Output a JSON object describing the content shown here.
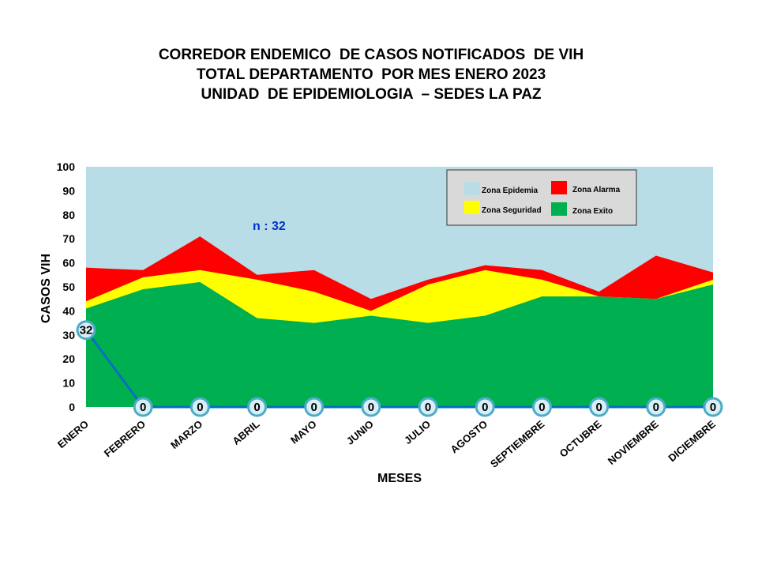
{
  "title_lines": [
    "CORREDOR ENDEMICO  DE CASOS NOTIFICADOS  DE VIH",
    "TOTAL DEPARTAMENTO  POR MES ENERO 2023",
    "UNIDAD  DE EPIDEMIOLOGIA  – SEDES LA PAZ"
  ],
  "annotation": "n : 32",
  "colors": {
    "epidemia": "#b8dde7",
    "alarma": "#ff0000",
    "seguridad": "#ffff00",
    "exito": "#00b050",
    "cases_line": "#0070c0",
    "marker_fill": "#d9eef5",
    "marker_stroke": "#4bacc6"
  },
  "chart_data": {
    "type": "area",
    "categories": [
      "ENERO",
      "FEBRERO",
      "MARZO",
      "ABRIL",
      "MAYO",
      "JUNIO",
      "JULIO",
      "AGOSTO",
      "SEPTIEMBRE",
      "OCTUBRE",
      "NOVIEMBRE",
      "DICIEMBRE"
    ],
    "xlabel": "MESES",
    "ylabel": "CASOS VIH",
    "ylim": [
      0,
      100
    ],
    "yticks": [
      0,
      10,
      20,
      30,
      40,
      50,
      60,
      70,
      80,
      90,
      100
    ],
    "legend_position": "top-right",
    "zones": [
      {
        "name": "Zona Epidemia",
        "upper": [
          100,
          100,
          100,
          100,
          100,
          100,
          100,
          100,
          100,
          100,
          100,
          100
        ]
      },
      {
        "name": "Zona Alarma",
        "upper": [
          58,
          57,
          71,
          55,
          57,
          45,
          53,
          59,
          57,
          48,
          63,
          56
        ]
      },
      {
        "name": "Zona Seguridad",
        "upper": [
          44,
          54,
          57,
          53,
          48,
          40,
          51,
          57,
          53,
          46,
          45,
          53
        ]
      },
      {
        "name": "Zona Exito",
        "upper": [
          41,
          49,
          52,
          37,
          35,
          38,
          35,
          38,
          46,
          46,
          45,
          51
        ]
      }
    ],
    "series": [
      {
        "values": [
          32,
          0,
          0,
          0,
          0,
          0,
          0,
          0,
          0,
          0,
          0,
          0
        ]
      }
    ]
  }
}
